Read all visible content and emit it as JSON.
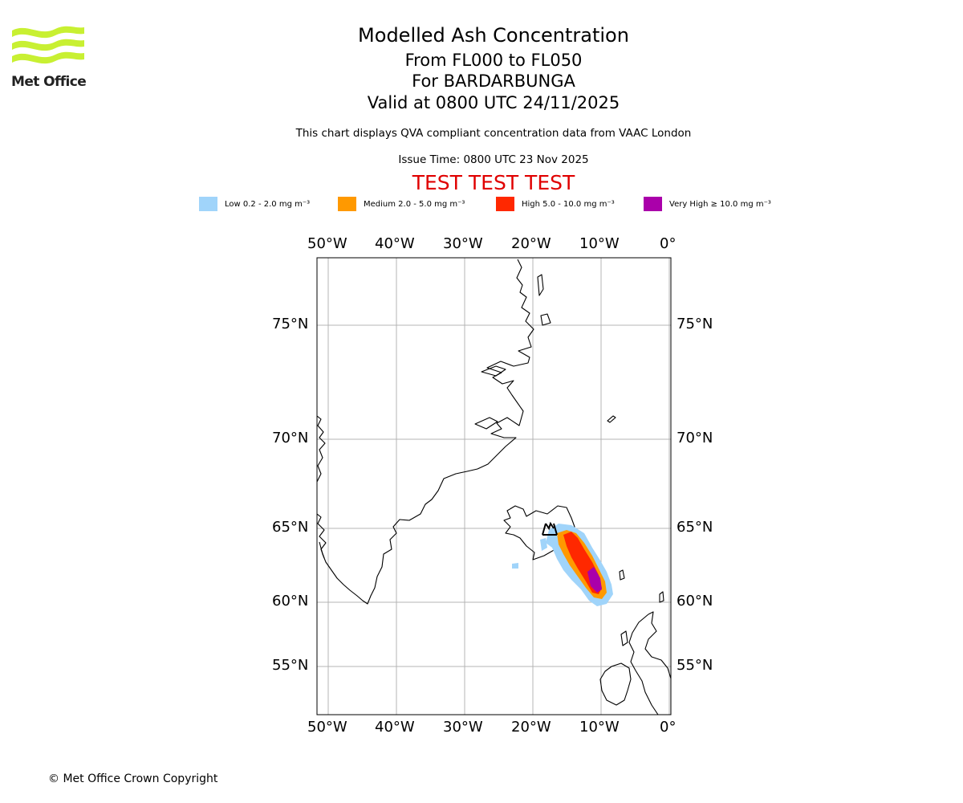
{
  "logo": {
    "text": "Met Office",
    "color": "#c8f032"
  },
  "header": {
    "title": "Modelled Ash Concentration",
    "flight_levels": "From FL000 to FL050",
    "volcano": "For BARDARBUNGA",
    "valid_time": "Valid at 0800 UTC 24/11/2025",
    "note": "This chart displays QVA compliant concentration data from VAAC London",
    "issue_time": "Issue Time: 0800 UTC 23 Nov 2025",
    "test_banner": "TEST TEST TEST"
  },
  "legend": [
    {
      "label": "Low 0.2 - 2.0 mg m⁻³",
      "color": "#a0d4fa"
    },
    {
      "label": "Medium 2.0 - 5.0 mg m⁻³",
      "color": "#ff9900"
    },
    {
      "label": "High 5.0 - 10.0 mg m⁻³",
      "color": "#ff2800"
    },
    {
      "label": "Very High ≥ 10.0 mg m⁻³",
      "color": "#aa00aa"
    }
  ],
  "axes": {
    "longitude_ticks": [
      "50°W",
      "40°W",
      "30°W",
      "20°W",
      "10°W",
      "0°"
    ],
    "latitude_ticks": [
      "75°N",
      "70°N",
      "65°N",
      "60°N",
      "55°N"
    ]
  },
  "footer": {
    "copyright": "© Met Office Crown Copyright"
  }
}
